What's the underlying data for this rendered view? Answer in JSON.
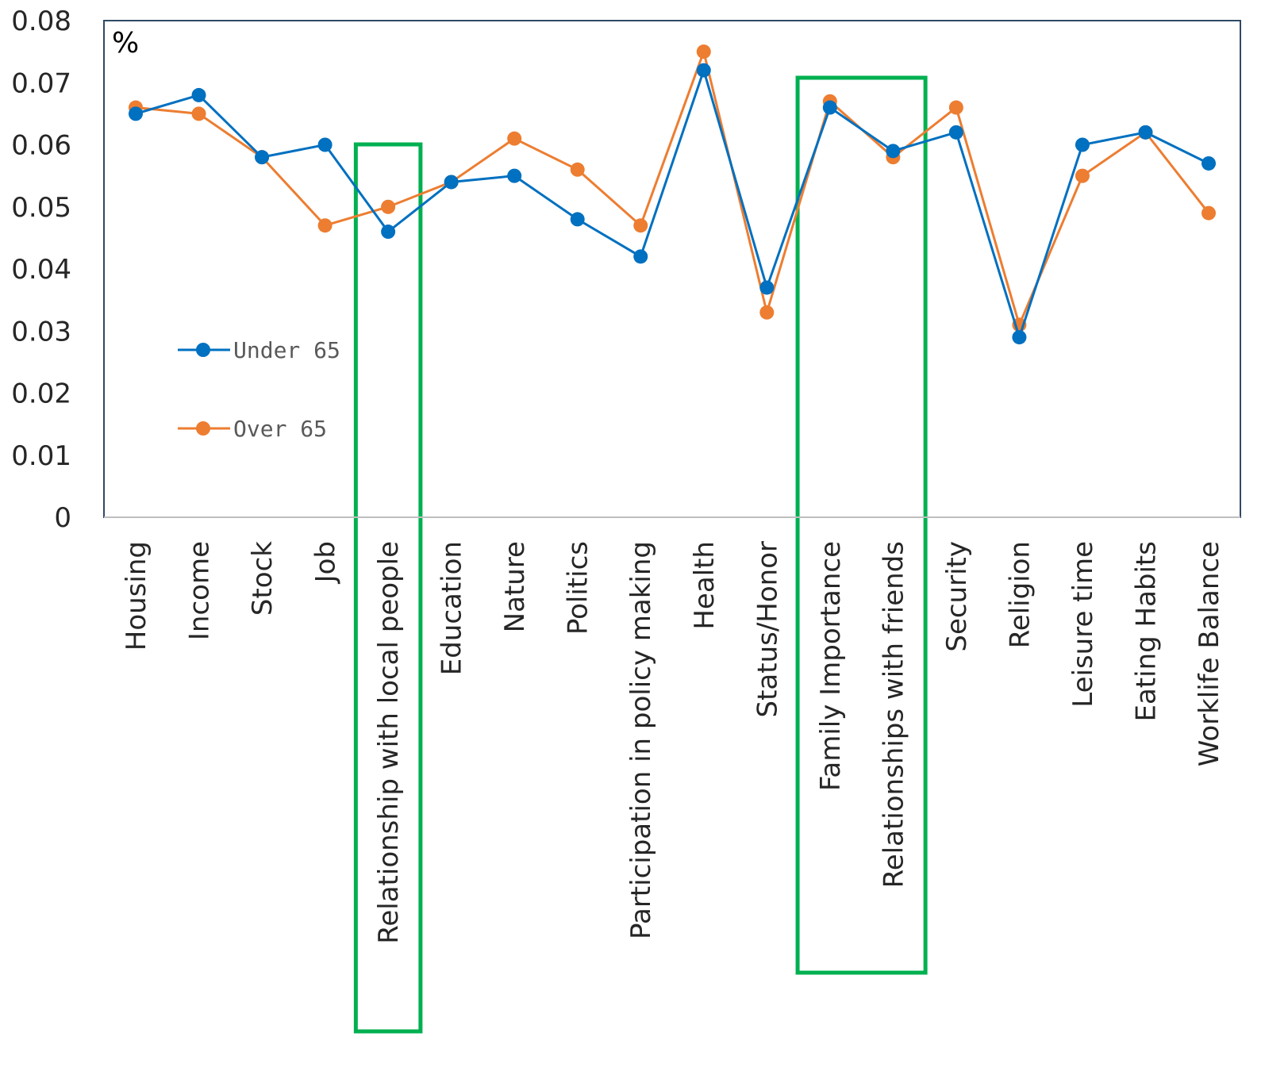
{
  "chart_data": {
    "type": "line",
    "unit_label": "%",
    "categories": [
      "Housing",
      "Income",
      "Stock",
      "Job",
      "Relationship with local people",
      "Education",
      "Nature",
      "Politics",
      "Participation in policy making",
      "Health",
      "Status/Honor",
      "Family Importance",
      "Relationships with friends",
      "Security",
      "Religion",
      "Leisure time",
      "Eating Habits",
      "Worklife Balance"
    ],
    "series": [
      {
        "name": "Under 65",
        "color": "#0070C0",
        "values": [
          0.065,
          0.068,
          0.058,
          0.06,
          0.046,
          0.054,
          0.055,
          0.048,
          0.042,
          0.072,
          0.037,
          0.066,
          0.059,
          0.062,
          0.029,
          0.06,
          0.062,
          0.057
        ]
      },
      {
        "name": "Over 65",
        "color": "#ED7D31",
        "values": [
          0.066,
          0.065,
          0.058,
          0.047,
          0.05,
          0.054,
          0.061,
          0.056,
          0.047,
          0.075,
          0.033,
          0.067,
          0.058,
          0.066,
          0.031,
          0.055,
          0.062,
          0.049
        ]
      }
    ],
    "y_ticks": [
      "0",
      "0.01",
      "0.02",
      "0.03",
      "0.04",
      "0.05",
      "0.06",
      "0.07",
      "0.08"
    ],
    "ylim": [
      0,
      0.08
    ],
    "grid": false,
    "legend_position": "center-left",
    "highlighted_categories": [
      [
        "Relationship with local people"
      ],
      [
        "Family Importance",
        "Relationships with friends"
      ]
    ],
    "highlight_color": "#00B050"
  }
}
